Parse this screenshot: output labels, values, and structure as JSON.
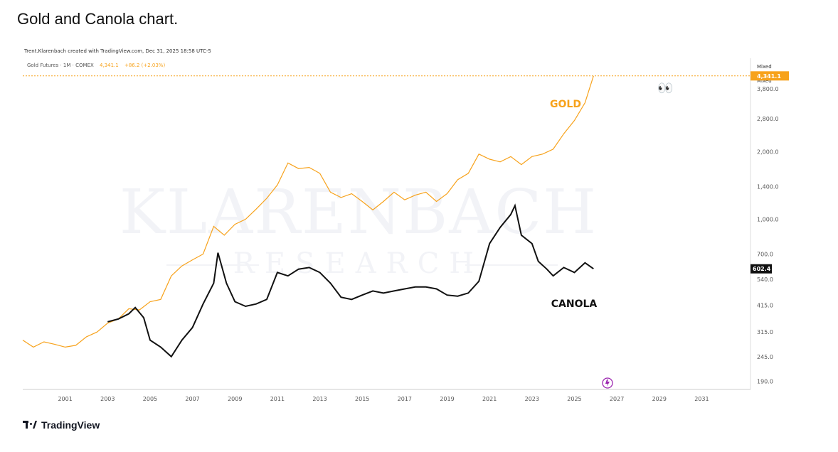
{
  "page": {
    "title": "Gold and Canola chart."
  },
  "chart": {
    "credit": "Trent.Klarenbach created with TradingView.com, Dec 31, 2025 18:58 UTC-5",
    "symbol_name": "Gold Futures · 1M · COMEX",
    "symbol_price": "4,341.1",
    "symbol_change": "+86.2 (+2.03%)",
    "scale_label_1": "Mixed",
    "scale_label_2": "Mixed",
    "gold_label": "GOLD",
    "canola_label": "CANOLA",
    "gold_price_tag": "4,341.1",
    "canola_price_tag": "602.4",
    "watermark_line1": "KLARENBACH",
    "watermark_line2": "RESEARCH",
    "eyes_emoji": "👀",
    "footer_brand": "TradingView"
  },
  "colors": {
    "gold": "#f7a21b",
    "canola": "#111111",
    "grid": "#eeeeee",
    "axis_text": "#555555",
    "canola_tag_bg": "#111111",
    "gold_tag_bg": "#f7a21b",
    "marker": "#9c27b0"
  },
  "chart_data": {
    "type": "line",
    "title": "Gold and Canola chart.",
    "xlabel": "",
    "ylabel": "",
    "y_scale": "log",
    "ylim": [
      175,
      5200
    ],
    "xlim": [
      1999.0,
      2033.3
    ],
    "x_ticks": [
      2001,
      2003,
      2005,
      2007,
      2009,
      2011,
      2013,
      2015,
      2017,
      2019,
      2021,
      2023,
      2025,
      2027,
      2029,
      2031
    ],
    "y_ticks": [
      {
        "value": 3800,
        "label": "3,800.0"
      },
      {
        "value": 2800,
        "label": "2,800.0"
      },
      {
        "value": 2000,
        "label": "2,000.0"
      },
      {
        "value": 1400,
        "label": "1,400.0"
      },
      {
        "value": 1000,
        "label": "1,000.0"
      },
      {
        "value": 700,
        "label": "700.0"
      },
      {
        "value": 540,
        "label": "540.0"
      },
      {
        "value": 415,
        "label": "415.0"
      },
      {
        "value": 315,
        "label": "315.0"
      },
      {
        "value": 245,
        "label": "245.0"
      },
      {
        "value": 190,
        "label": "190.0"
      }
    ],
    "price_line_value": 4341.1,
    "series": [
      {
        "name": "GOLD",
        "color": "#f7a21b",
        "points": [
          [
            1999.0,
            290
          ],
          [
            1999.5,
            270
          ],
          [
            2000.0,
            285
          ],
          [
            2000.5,
            278
          ],
          [
            2001.0,
            270
          ],
          [
            2001.5,
            275
          ],
          [
            2002.0,
            300
          ],
          [
            2002.5,
            315
          ],
          [
            2003.0,
            345
          ],
          [
            2003.5,
            360
          ],
          [
            2004.0,
            400
          ],
          [
            2004.5,
            395
          ],
          [
            2005.0,
            430
          ],
          [
            2005.5,
            440
          ],
          [
            2006.0,
            560
          ],
          [
            2006.5,
            620
          ],
          [
            2007.0,
            660
          ],
          [
            2007.5,
            700
          ],
          [
            2008.0,
            930
          ],
          [
            2008.5,
            850
          ],
          [
            2009.0,
            950
          ],
          [
            2009.5,
            1000
          ],
          [
            2010.0,
            1110
          ],
          [
            2010.5,
            1240
          ],
          [
            2011.0,
            1420
          ],
          [
            2011.5,
            1780
          ],
          [
            2012.0,
            1680
          ],
          [
            2012.5,
            1700
          ],
          [
            2013.0,
            1600
          ],
          [
            2013.5,
            1320
          ],
          [
            2014.0,
            1250
          ],
          [
            2014.5,
            1300
          ],
          [
            2015.0,
            1200
          ],
          [
            2015.5,
            1100
          ],
          [
            2016.0,
            1200
          ],
          [
            2016.5,
            1320
          ],
          [
            2017.0,
            1220
          ],
          [
            2017.5,
            1280
          ],
          [
            2018.0,
            1320
          ],
          [
            2018.5,
            1200
          ],
          [
            2019.0,
            1300
          ],
          [
            2019.5,
            1500
          ],
          [
            2020.0,
            1600
          ],
          [
            2020.5,
            1950
          ],
          [
            2021.0,
            1850
          ],
          [
            2021.5,
            1800
          ],
          [
            2022.0,
            1900
          ],
          [
            2022.5,
            1750
          ],
          [
            2023.0,
            1900
          ],
          [
            2023.5,
            1950
          ],
          [
            2024.0,
            2050
          ],
          [
            2024.5,
            2400
          ],
          [
            2025.0,
            2750
          ],
          [
            2025.5,
            3300
          ],
          [
            2025.9,
            4341
          ]
        ]
      },
      {
        "name": "CANOLA",
        "color": "#111111",
        "points": [
          [
            2003.0,
            350
          ],
          [
            2003.5,
            360
          ],
          [
            2004.0,
            380
          ],
          [
            2004.3,
            405
          ],
          [
            2004.7,
            365
          ],
          [
            2005.0,
            290
          ],
          [
            2005.5,
            270
          ],
          [
            2006.0,
            245
          ],
          [
            2006.5,
            290
          ],
          [
            2007.0,
            330
          ],
          [
            2007.5,
            420
          ],
          [
            2008.0,
            520
          ],
          [
            2008.2,
            710
          ],
          [
            2008.6,
            520
          ],
          [
            2009.0,
            430
          ],
          [
            2009.5,
            410
          ],
          [
            2010.0,
            420
          ],
          [
            2010.5,
            440
          ],
          [
            2011.0,
            580
          ],
          [
            2011.5,
            560
          ],
          [
            2012.0,
            600
          ],
          [
            2012.5,
            610
          ],
          [
            2013.0,
            580
          ],
          [
            2013.5,
            520
          ],
          [
            2014.0,
            450
          ],
          [
            2014.5,
            440
          ],
          [
            2015.0,
            460
          ],
          [
            2015.5,
            480
          ],
          [
            2016.0,
            470
          ],
          [
            2016.5,
            480
          ],
          [
            2017.0,
            490
          ],
          [
            2017.5,
            500
          ],
          [
            2018.0,
            500
          ],
          [
            2018.5,
            490
          ],
          [
            2019.0,
            460
          ],
          [
            2019.5,
            455
          ],
          [
            2020.0,
            470
          ],
          [
            2020.5,
            530
          ],
          [
            2021.0,
            780
          ],
          [
            2021.5,
            920
          ],
          [
            2022.0,
            1050
          ],
          [
            2022.2,
            1150
          ],
          [
            2022.5,
            850
          ],
          [
            2023.0,
            780
          ],
          [
            2023.3,
            650
          ],
          [
            2023.7,
            600
          ],
          [
            2024.0,
            560
          ],
          [
            2024.5,
            610
          ],
          [
            2025.0,
            580
          ],
          [
            2025.5,
            640
          ],
          [
            2025.9,
            602
          ]
        ]
      }
    ]
  }
}
